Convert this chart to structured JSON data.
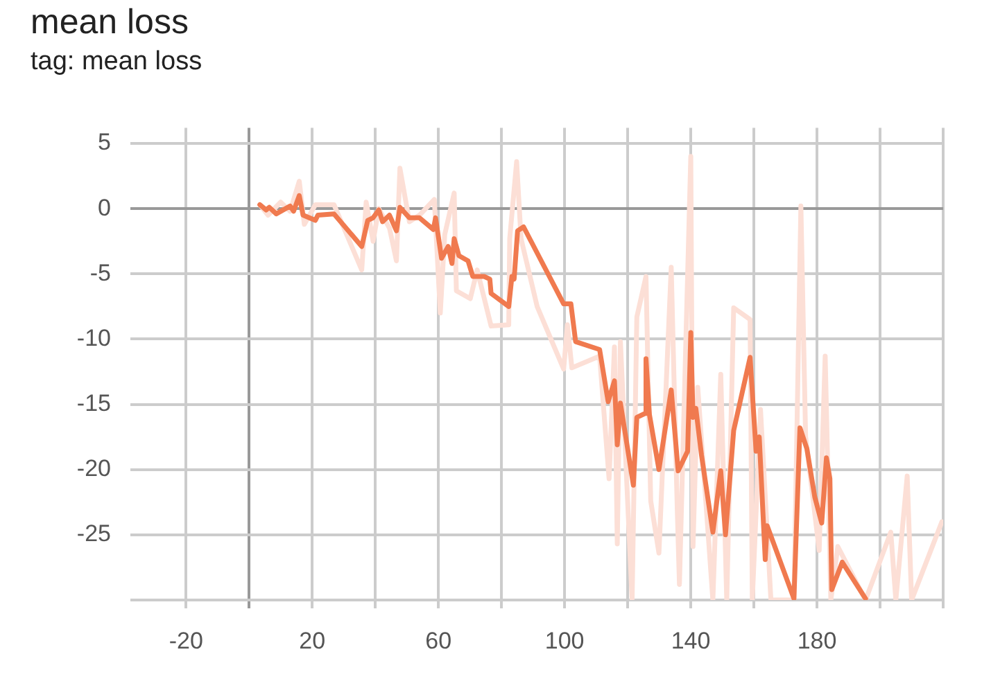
{
  "chart_data": {
    "type": "line",
    "title": "mean loss",
    "subtitle": "tag: mean loss",
    "xlim": [
      -35,
      220
    ],
    "xticks": [
      {
        "value": -20,
        "label": "-20"
      },
      {
        "value": 0,
        "label": null
      },
      {
        "value": 20,
        "label": "20"
      },
      {
        "value": 40,
        "label": null
      },
      {
        "value": 60,
        "label": "60"
      },
      {
        "value": 80,
        "label": null
      },
      {
        "value": 100,
        "label": "100"
      },
      {
        "value": 120,
        "label": null
      },
      {
        "value": 140,
        "label": "140"
      },
      {
        "value": 160,
        "label": null
      },
      {
        "value": 180,
        "label": "180"
      },
      {
        "value": 200,
        "label": null
      },
      {
        "value": 220,
        "label": null
      }
    ],
    "ylim": [
      -30,
      6.2
    ],
    "yticks": [
      {
        "value": -30,
        "label": null
      },
      -25,
      -20,
      -15,
      -10,
      -5,
      0,
      5
    ],
    "grid": true,
    "legend": false,
    "marker": "none",
    "line_style": "solid",
    "series": [
      {
        "color": "#fcdfd6",
        "x": [
          3.4,
          6,
          10,
          13,
          15.9,
          17.5,
          21,
          26.9,
          35.7,
          37.1,
          39.3,
          41.1,
          44.5,
          46.7,
          47.8,
          50.8,
          54,
          58.7,
          60.6,
          62,
          65,
          65.7,
          70.1,
          72.3,
          76.7,
          82.3,
          82.6,
          84.8,
          86.2,
          91.3,
          99.7,
          100.9,
          102.3,
          111.1,
          114.1,
          115.8,
          116.7,
          117.7,
          121.4,
          122.9,
          125.8,
          127.3,
          129.9,
          133.8,
          135.7,
          136.4,
          140,
          140.7,
          142.2,
          147,
          149.5,
          151.4,
          153.6,
          158.8,
          159.5,
          162.1,
          165.4,
          172.7,
          174.9,
          176.4,
          180.7,
          182.6,
          184.4,
          186.6,
          195.4,
          203.4,
          205,
          208.6,
          210,
          219.6
        ],
        "values": [
          0.3,
          -0.5,
          0.5,
          -0.2,
          2.1,
          -1.2,
          0.3,
          0.3,
          -4.7,
          0.5,
          -2.5,
          0,
          -1.5,
          -4,
          3.1,
          -1,
          -0.5,
          0.7,
          -8,
          -2,
          1.2,
          -6.3,
          -6.9,
          -4.7,
          -9,
          -8.9,
          -2.3,
          3.6,
          -2.3,
          -7.5,
          -12.3,
          -8.9,
          -12.2,
          -11.3,
          -20.7,
          -10.6,
          -25.7,
          -10.2,
          -30,
          -8.3,
          -5.2,
          -22.4,
          -26.4,
          -4.5,
          -22.9,
          -28.8,
          4,
          -25.9,
          -13.7,
          -30,
          -12.7,
          -30,
          -7.6,
          -8.5,
          -30,
          -15.4,
          -30,
          -30,
          0.2,
          -17.5,
          -26.2,
          -11.3,
          -30,
          -25.9,
          -30,
          -24.8,
          -30,
          -20.5,
          -30,
          -24
        ]
      },
      {
        "color": "#f07a4f",
        "x": [
          3.4,
          5.4,
          6.4,
          8.6,
          13,
          14.1,
          15.9,
          17.1,
          21,
          21.8,
          26.9,
          35.7,
          37.6,
          39.3,
          41.1,
          42.3,
          44.5,
          46.7,
          47.8,
          50.8,
          54,
          58.4,
          59.1,
          61,
          63.1,
          64.3,
          65,
          66.5,
          69.4,
          70.9,
          74.5,
          76.3,
          76.7,
          82.3,
          83.3,
          84,
          85.1,
          87,
          99.7,
          102,
          103.5,
          111.1,
          113.8,
          115.8,
          116.7,
          117.7,
          121.8,
          122.9,
          125.5,
          125.8,
          126.9,
          129.9,
          133.8,
          136,
          139,
          140,
          140.7,
          141.6,
          143.4,
          147,
          149.5,
          151,
          153.6,
          158.8,
          160.7,
          161.7,
          163.6,
          164.2,
          172.7,
          174.6,
          176.8,
          179.3,
          181.5,
          183,
          184.1,
          184.7,
          188,
          195.4
        ],
        "values": [
          0.3,
          -0.1,
          0.1,
          -0.4,
          0.2,
          -0.2,
          1,
          -0.5,
          -0.9,
          -0.5,
          -0.4,
          -2.9,
          -0.9,
          -0.7,
          -0.1,
          -1,
          -0.5,
          -1.7,
          0.1,
          -0.7,
          -0.7,
          -1.6,
          -0.7,
          -3.8,
          -2.9,
          -4.2,
          -2.3,
          -3.6,
          -4,
          -5.2,
          -5.2,
          -5.4,
          -6.5,
          -7.5,
          -5.2,
          -5.4,
          -1.7,
          -1.4,
          -7.3,
          -7.3,
          -10.2,
          -10.8,
          -14.8,
          -13.2,
          -18.1,
          -14.9,
          -21.2,
          -16,
          -15.7,
          -11.5,
          -15.8,
          -20,
          -13.9,
          -20.1,
          -18.6,
          -9.5,
          -16,
          -15.3,
          -18.9,
          -24.8,
          -20.1,
          -25,
          -17,
          -11.4,
          -18.6,
          -17.5,
          -26.9,
          -24.3,
          -29.9,
          -16.8,
          -18.4,
          -22.1,
          -24.1,
          -19.1,
          -20.7,
          -29.2,
          -27.1,
          -29.9
        ]
      }
    ]
  }
}
